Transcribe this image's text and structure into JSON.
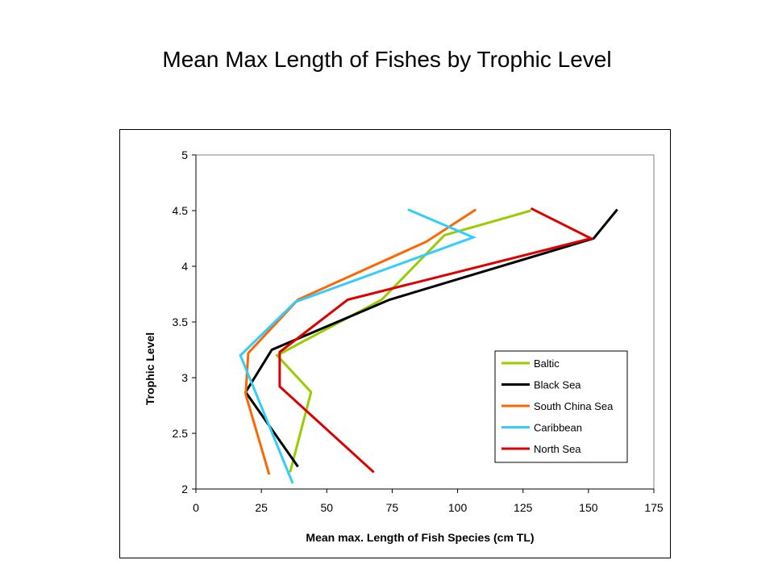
{
  "title": "Mean Max Length of Fishes by Trophic Level",
  "chart_data": {
    "type": "line",
    "xlabel": "Mean max. Length of Fish Species (cm TL)",
    "ylabel": "Trophic Level",
    "xlim": [
      0,
      175
    ],
    "ylim": [
      2,
      5
    ],
    "xticks": [
      "0",
      "25",
      "50",
      "75",
      "100",
      "125",
      "150",
      "175"
    ],
    "yticks": [
      "2",
      "2.5",
      "3",
      "3.5",
      "4",
      "4.5",
      "5"
    ],
    "grid": false,
    "legend_position": "right",
    "series": [
      {
        "name": "Baltic",
        "color": "#99cc00",
        "points": [
          [
            36,
            2.15
          ],
          [
            44,
            2.87
          ],
          [
            31,
            3.2
          ],
          [
            71,
            3.7
          ],
          [
            95,
            4.28
          ],
          [
            128,
            4.5
          ]
        ]
      },
      {
        "name": "Black Sea",
        "color": "#000000",
        "points": [
          [
            39,
            2.2
          ],
          [
            19,
            2.87
          ],
          [
            29,
            3.25
          ],
          [
            74,
            3.7
          ],
          [
            152,
            4.25
          ],
          [
            161,
            4.51
          ]
        ]
      },
      {
        "name": "South China Sea",
        "color": "#ff6600",
        "points": [
          [
            28,
            2.13
          ],
          [
            19,
            2.85
          ],
          [
            20,
            3.22
          ],
          [
            39,
            3.7
          ],
          [
            88,
            4.22
          ],
          [
            107,
            4.51
          ]
        ]
      },
      {
        "name": "Caribbean",
        "color": "#33ccff",
        "points": [
          [
            37,
            2.05
          ],
          [
            17,
            3.2
          ],
          [
            38,
            3.68
          ],
          [
            106,
            4.26
          ],
          [
            81,
            4.51
          ]
        ]
      },
      {
        "name": "North Sea",
        "color": "#dd0000",
        "points": [
          [
            68,
            2.15
          ],
          [
            32,
            2.92
          ],
          [
            32,
            3.23
          ],
          [
            58,
            3.7
          ],
          [
            151,
            4.25
          ],
          [
            128,
            4.52
          ]
        ]
      }
    ]
  }
}
